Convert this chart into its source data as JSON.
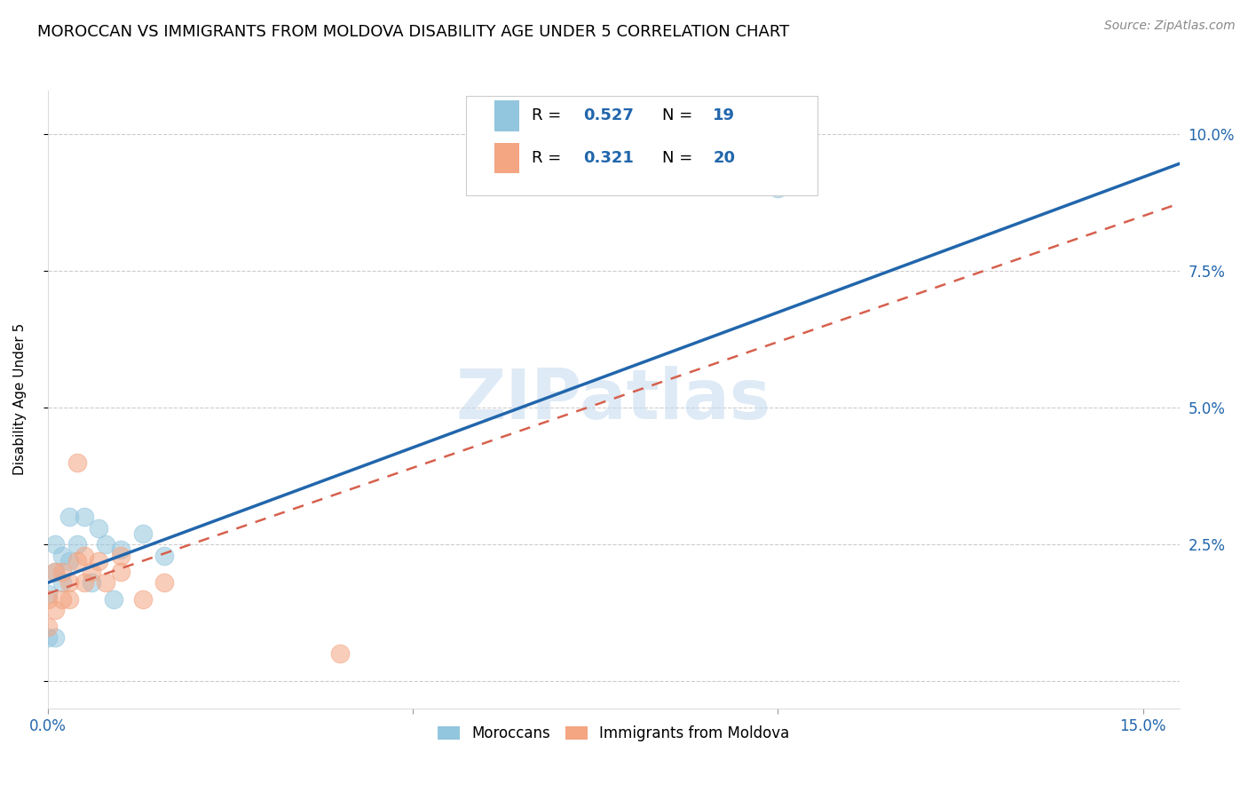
{
  "title": "MOROCCAN VS IMMIGRANTS FROM MOLDOVA DISABILITY AGE UNDER 5 CORRELATION CHART",
  "source": "Source: ZipAtlas.com",
  "ylabel": "Disability Age Under 5",
  "xlim": [
    0.0,
    0.155
  ],
  "ylim": [
    -0.005,
    0.108
  ],
  "xticks": [
    0.0,
    0.05,
    0.1,
    0.15
  ],
  "xticklabels": [
    "0.0%",
    "",
    "",
    "15.0%"
  ],
  "yticks": [
    0.0,
    0.025,
    0.05,
    0.075,
    0.1
  ],
  "yticklabels": [
    "",
    "2.5%",
    "5.0%",
    "7.5%",
    "10.0%"
  ],
  "legend_label1": "Moroccans",
  "legend_label2": "Immigrants from Moldova",
  "moroccan_color": "#92c5de",
  "moldova_color": "#f4a582",
  "blue_line_color": "#2166ac",
  "pink_line_color": "#d6604d",
  "watermark": "ZIPatlas",
  "title_fontsize": 13,
  "axis_label_fontsize": 11,
  "tick_fontsize": 12,
  "moroccan_x": [
    0.0,
    0.0,
    0.001,
    0.001,
    0.001,
    0.002,
    0.002,
    0.003,
    0.003,
    0.004,
    0.005,
    0.006,
    0.007,
    0.008,
    0.009,
    0.01,
    0.013,
    0.016,
    0.1
  ],
  "moroccan_y": [
    0.008,
    0.016,
    0.02,
    0.025,
    0.008,
    0.018,
    0.023,
    0.022,
    0.03,
    0.025,
    0.03,
    0.018,
    0.028,
    0.025,
    0.015,
    0.024,
    0.027,
    0.023,
    0.09
  ],
  "moldova_x": [
    0.0,
    0.0,
    0.001,
    0.001,
    0.002,
    0.002,
    0.003,
    0.003,
    0.004,
    0.004,
    0.005,
    0.005,
    0.006,
    0.007,
    0.008,
    0.01,
    0.01,
    0.013,
    0.016,
    0.04
  ],
  "moldova_y": [
    0.01,
    0.015,
    0.013,
    0.02,
    0.015,
    0.02,
    0.018,
    0.015,
    0.022,
    0.04,
    0.018,
    0.023,
    0.02,
    0.022,
    0.018,
    0.02,
    0.023,
    0.015,
    0.018,
    0.005
  ]
}
